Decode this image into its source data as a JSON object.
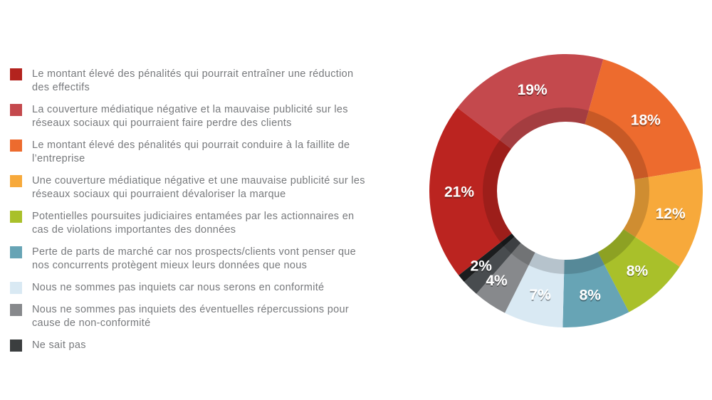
{
  "page": {
    "background": "#ffffff"
  },
  "legend": {
    "items": [
      {
        "color": "#b3231e",
        "text": "Le montant élevé des pénalités qui pourrait entraîner une réduction\ndes effectifs"
      },
      {
        "color": "#c4494d",
        "text": "La couverture médiatique négative et la mauvaise publicité sur les\nréseaux sociaux qui pourraient faire perdre des clients"
      },
      {
        "color": "#ed6b2e",
        "text": "Le montant élevé des pénalités qui pourrait conduire à la faillite de\nl’entreprise"
      },
      {
        "color": "#f7a93b",
        "text": "Une couverture médiatique négative et une mauvaise publicité sur les\nréseaux sociaux qui pourraient dévaloriser la marque"
      },
      {
        "color": "#a9c02a",
        "text": "Potentielles poursuites judiciaires entamées par les actionnaires en\ncas de violations importantes des données"
      },
      {
        "color": "#67a4b5",
        "text": "Perte de parts de marché car nos prospects/clients vont penser que\nnos concurrents protègent mieux leurs données que nous"
      },
      {
        "color": "#d9e9f3",
        "text": "Nous ne sommes pas inquiets car nous serons en conformité"
      },
      {
        "color": "#87898c",
        "text": "Nous ne sommes pas inquiets des éventuelles répercussions pour\ncause de non-conformité"
      },
      {
        "color": "#3b3e3f",
        "text": "Ne sait pas"
      }
    ]
  },
  "chart_data": {
    "type": "pie",
    "subtype": "donut",
    "title": "",
    "legend_position": "left",
    "direction": "clockwise",
    "start_angle_deg": -52.6,
    "value_label_color": "#ffffff",
    "slices": [
      {
        "label": "19%",
        "value": 19,
        "color": "#c4494d",
        "category": "La couverture médiatique négative et la mauvaise publicité sur les réseaux sociaux qui pourraient faire perdre des clients"
      },
      {
        "label": "18%",
        "value": 18,
        "color": "#ed6b2e",
        "category": "Le montant élevé des pénalités qui pourrait conduire à la faillite de l’entreprise"
      },
      {
        "label": "12%",
        "value": 12,
        "color": "#f7a93b",
        "category": "Une couverture médiatique négative et une mauvaise publicité sur les réseaux sociaux qui pourraient dévaloriser la marque"
      },
      {
        "label": "8%",
        "value": 8,
        "color": "#a9c02a",
        "category": "Potentielles poursuites judiciaires entamées par les actionnaires en cas de violations importantes des données"
      },
      {
        "label": "8%",
        "value": 8,
        "color": "#67a4b5",
        "category": "Perte de parts de marché car nos prospects/clients vont penser que nos concurrents protègent mieux leurs données que nous"
      },
      {
        "label": "7%",
        "value": 7,
        "color": "#d9e9f3",
        "category": "Nous ne sommes pas inquiets car nous serons en conformité"
      },
      {
        "label": "4%",
        "value": 4,
        "color": "#87898c",
        "category": "Nous ne sommes pas inquiets des éventuelles répercussions pour cause de non-conformité"
      },
      {
        "label": "2%",
        "value": 2,
        "color": "#484c4f",
        "category": "Ne sait pas"
      },
      {
        "label": "",
        "value": 1,
        "color": "#1b1d1e",
        "category": ""
      },
      {
        "label": "21%",
        "value": 21,
        "color": "#bb2420",
        "category": "Le montant élevé des pénalités qui pourrait entraîner une réduction des effectifs"
      }
    ]
  }
}
